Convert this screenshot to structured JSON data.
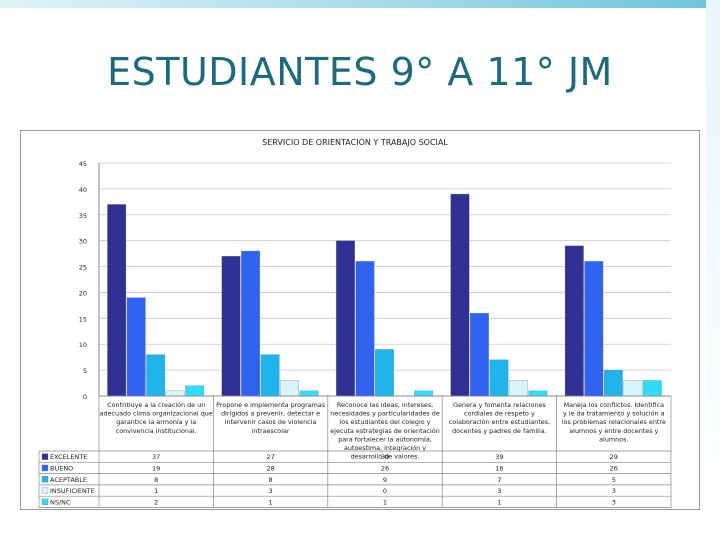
{
  "slide": {
    "title": "ESTUDIANTES 9° A  11° JM"
  },
  "chart_data": {
    "type": "bar",
    "title": "SERVICIO DE ORIENTACIÓN Y TRABAJO SOCIAL",
    "ylim": [
      0,
      45
    ],
    "yticks": [
      0,
      5,
      10,
      15,
      20,
      25,
      30,
      35,
      40,
      45
    ],
    "grid": true,
    "legend": "table-left",
    "categories": [
      "Contribuye a la creación de un adecuado clima organizacional que garantice la armonía y la convivencia institucional.",
      "Propone e implementa programas dirigidos a prevenir, detectar e intervenir casos de violencia intraescolar",
      "Reconoce las ideas, intereses, necesidades y particularidades de los estudiantes del colegio y ejecuta estrategias de orientación para fortalecer la autonomía, autoestima, integración y desarrollo de valores.",
      "Genera y fomenta relaciones cordiales de respeto y colaboración entre estudiantes, docentes y padres de familia.",
      "Maneja los conflictos. Identifica y le da tratamiento y solución a los problemas relacionales entre alumnos y entre docentes y alumnos."
    ],
    "series": [
      {
        "name": "EXCELENTE",
        "color": "#2e3192",
        "values": [
          37,
          27,
          30,
          39,
          29
        ]
      },
      {
        "name": "BUENO",
        "color": "#2f63f2",
        "values": [
          19,
          28,
          26,
          16,
          26
        ]
      },
      {
        "name": "ACEPTABLE",
        "color": "#1fb4ec",
        "values": [
          8,
          8,
          9,
          7,
          5
        ]
      },
      {
        "name": "INSUFICIENTE",
        "color": "#d7f4fb",
        "values": [
          1,
          3,
          0,
          3,
          3
        ]
      },
      {
        "name": "NS/NC",
        "color": "#2fdcf5",
        "values": [
          2,
          1,
          1,
          1,
          3
        ]
      }
    ]
  }
}
